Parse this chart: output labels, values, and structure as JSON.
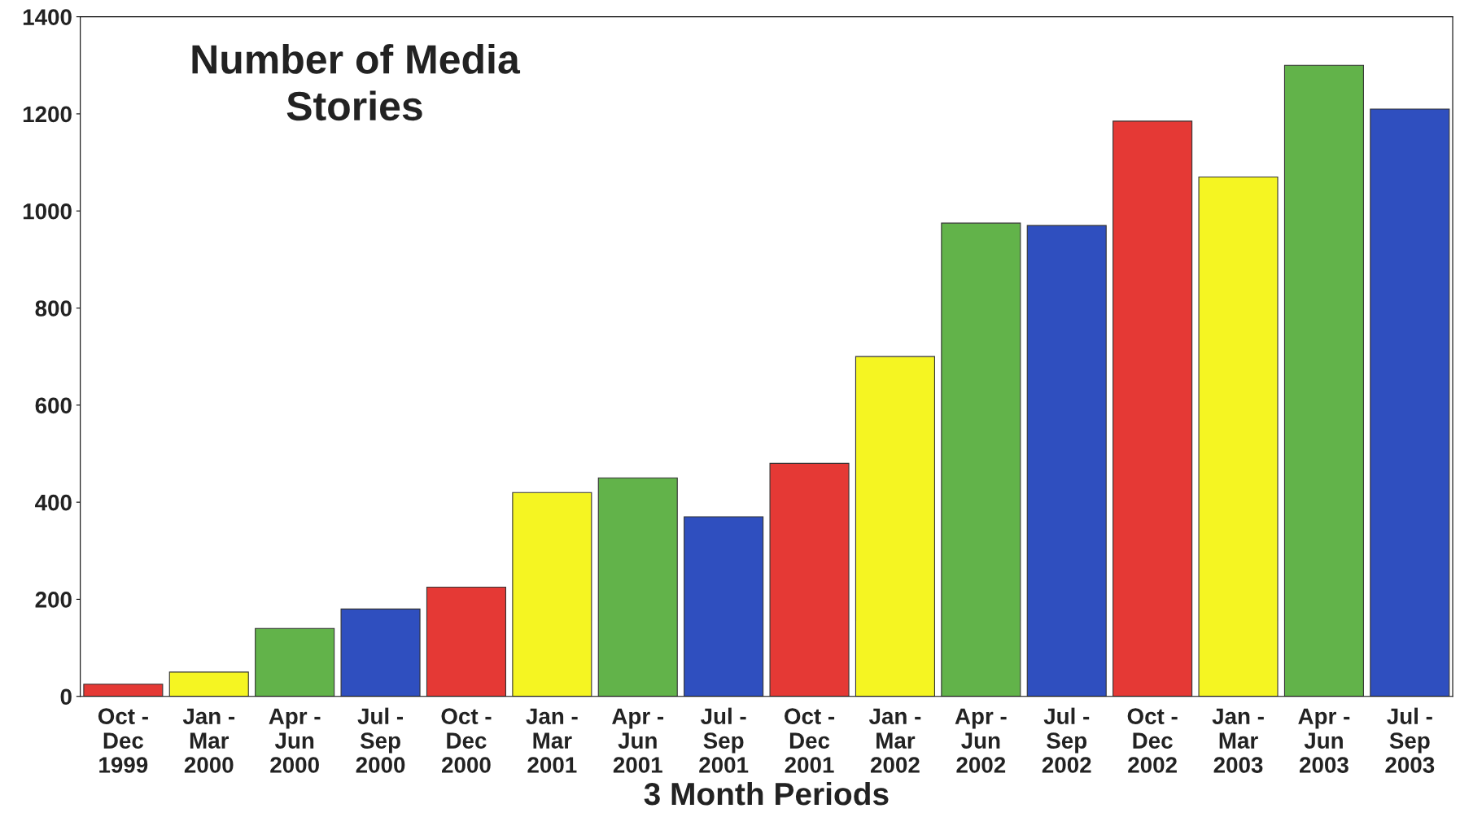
{
  "chart_data": {
    "type": "bar",
    "title": "Number of Media\nStories",
    "xlabel": "3 Month Periods",
    "categories": [
      "Oct -\nDec\n1999",
      "Jan -\nMar\n2000",
      "Apr -\nJun\n2000",
      "Jul -\nSep\n2000",
      "Oct -\nDec\n2000",
      "Jan -\nMar\n2001",
      "Apr -\nJun\n2001",
      "Jul -\nSep\n2001",
      "Oct -\nDec\n2001",
      "Jan -\nMar\n2002",
      "Apr -\nJun\n2002",
      "Jul -\nSep\n2002",
      "Oct -\nDec\n2002",
      "Jan -\nMar\n2003",
      "Apr -\nJun\n2003",
      "Jul -\nSep\n2003"
    ],
    "values": [
      25,
      50,
      140,
      180,
      225,
      420,
      450,
      370,
      480,
      700,
      975,
      970,
      1185,
      1070,
      1300,
      1210
    ],
    "colors": [
      "#e53935",
      "#f5f522",
      "#62b34a",
      "#2f4fbf",
      "#e53935",
      "#f5f522",
      "#62b34a",
      "#2f4fbf",
      "#e53935",
      "#f5f522",
      "#62b34a",
      "#2f4fbf",
      "#e53935",
      "#f5f522",
      "#62b34a",
      "#2f4fbf"
    ],
    "ylim": [
      0,
      1400
    ],
    "yticks": [
      0,
      200,
      400,
      600,
      800,
      1000,
      1200,
      1400
    ],
    "grid": false
  }
}
